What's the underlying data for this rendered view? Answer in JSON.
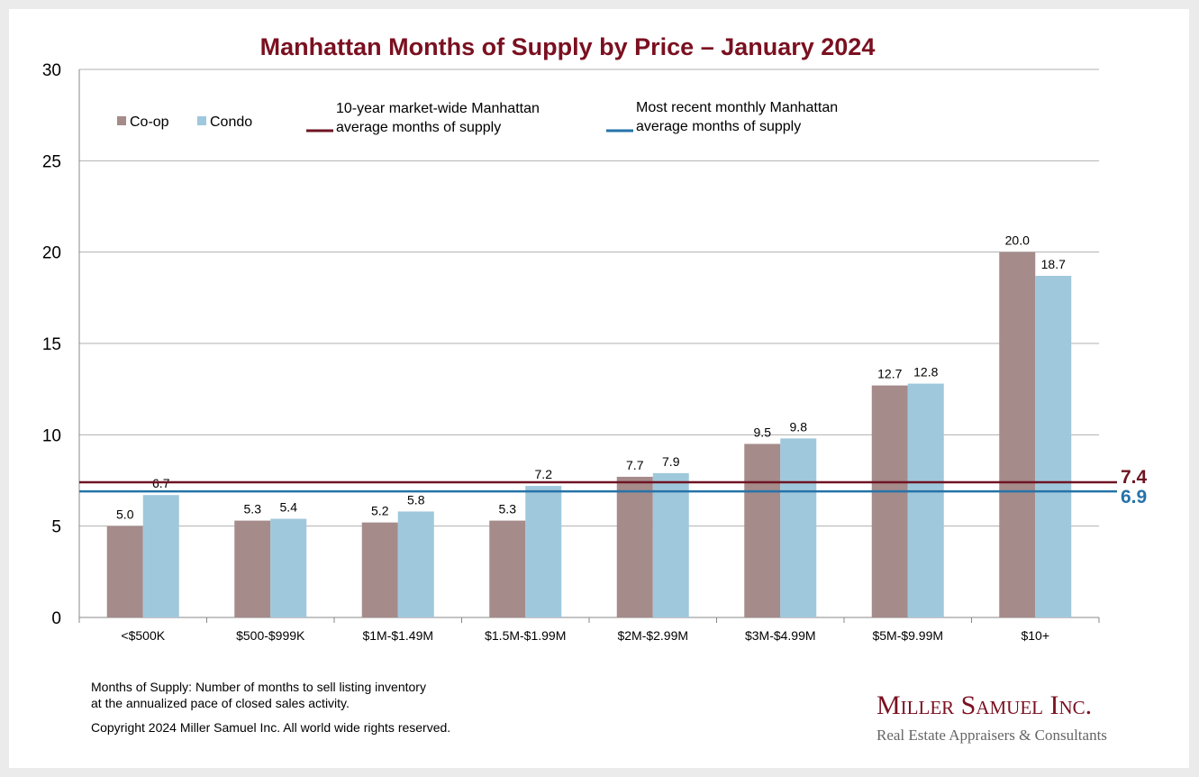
{
  "chart_data": {
    "type": "bar",
    "title": "Manhattan Months of Supply by Price – January 2024",
    "xlabel": "",
    "ylabel": "",
    "ylim": [
      0,
      30
    ],
    "yticks": [
      0,
      5,
      10,
      15,
      20,
      25,
      30
    ],
    "grid": true,
    "legend_position": "top-left",
    "categories": [
      "<$500K",
      "$500-$999K",
      "$1M-$1.49M",
      "$1.5M-$1.99M",
      "$2M-$2.99M",
      "$3M-$4.99M",
      "$5M-$9.99M",
      "$10+"
    ],
    "series": [
      {
        "name": "Co-op",
        "color": "#a58b8a",
        "values": [
          5.0,
          5.3,
          5.2,
          5.3,
          7.7,
          9.5,
          12.7,
          20.0
        ]
      },
      {
        "name": "Condo",
        "color": "#9fc8dc",
        "values": [
          6.7,
          5.4,
          5.8,
          7.2,
          7.9,
          9.8,
          12.8,
          18.7
        ]
      }
    ],
    "reference_lines": [
      {
        "name": "10-year market-wide Manhattan average months of supply",
        "line1": "10-year market-wide Manhattan",
        "line2": "average months of supply",
        "value": 7.4,
        "label": "7.4",
        "color": "#6e1423"
      },
      {
        "name": "Most recent monthly Manhattan average months of supply",
        "line1": "Most recent monthly Manhattan",
        "line2": "average months of supply",
        "value": 6.9,
        "label": "6.9",
        "color": "#2673a8"
      }
    ]
  },
  "notes": {
    "line1": "Months of Supply: Number of months to sell listing inventory",
    "line2": "at the annualized pace of closed sales activity.",
    "copyright": "Copyright 2024 Miller Samuel Inc.  All world wide rights reserved."
  },
  "logo": {
    "name": "Miller Samuel Inc.",
    "tagline": "Real Estate Appraisers & Consultants"
  }
}
